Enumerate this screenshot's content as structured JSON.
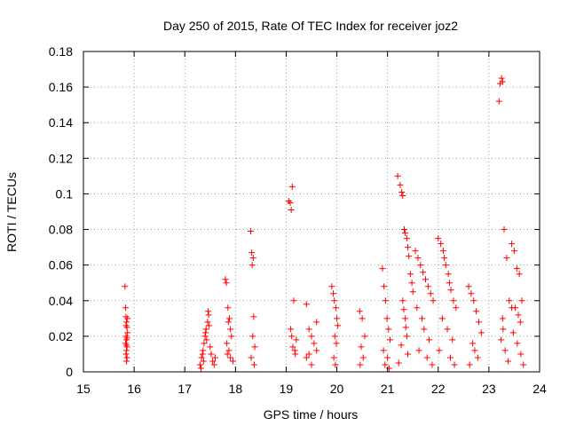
{
  "chart_data": {
    "type": "scatter",
    "title": "Day 250 of 2015, Rate Of TEC Index for receiver joz2",
    "xlabel": "GPS time / hours",
    "ylabel": "ROTI / TECUs",
    "xlim": [
      15,
      24
    ],
    "ylim": [
      0,
      0.18
    ],
    "x_ticks": [
      "15",
      "16",
      "17",
      "18",
      "19",
      "20",
      "21",
      "22",
      "23",
      "24"
    ],
    "y_ticks": [
      "0",
      "0.02",
      "0.04",
      "0.06",
      "0.08",
      "0.1",
      "0.12",
      "0.14",
      "0.16",
      "0.18"
    ],
    "grid": true,
    "marker": "plus",
    "colors": {
      "points": "#ff0000",
      "grid": "#a0a0a0",
      "axes": "#000000"
    },
    "series": [
      {
        "x": [
          15.82,
          15.83,
          15.84,
          15.85,
          15.86,
          15.87,
          15.84,
          15.85,
          15.83,
          15.86,
          15.85,
          15.84,
          15.86,
          15.85,
          15.84,
          15.87,
          15.85,
          15.86,
          17.3,
          17.33,
          17.36,
          17.38,
          17.4,
          17.42,
          17.45,
          17.47,
          17.35,
          17.37,
          17.43,
          17.48,
          17.5,
          17.52,
          17.55,
          17.6,
          17.58,
          17.32,
          17.41,
          17.46,
          17.8,
          17.82,
          17.85,
          17.88,
          17.9,
          17.92,
          17.83,
          17.87,
          17.9,
          17.95,
          17.84,
          17.86,
          18.3,
          18.32,
          18.35,
          18.33,
          18.36,
          18.34,
          18.38,
          18.31,
          18.37,
          19.05,
          19.08,
          19.1,
          19.12,
          19.15,
          19.2,
          19.13,
          19.17,
          19.18,
          19.11,
          19.09,
          19.4,
          19.45,
          19.5,
          19.55,
          19.6,
          19.4,
          19.5,
          19.6,
          19.45,
          19.9,
          19.93,
          19.95,
          19.98,
          20.0,
          20.02,
          19.96,
          19.99,
          19.94,
          19.97,
          20.45,
          20.5,
          20.55,
          20.48,
          20.52,
          20.46,
          20.9,
          20.93,
          20.96,
          20.99,
          21.02,
          21.05,
          20.92,
          21.0,
          20.95,
          21.03,
          21.2,
          21.25,
          21.28,
          21.3,
          21.33,
          21.35,
          21.38,
          21.4,
          21.42,
          21.45,
          21.48,
          21.5,
          21.3,
          21.32,
          21.35,
          21.36,
          21.38,
          21.27,
          21.4,
          21.22,
          21.55,
          21.6,
          21.65,
          21.7,
          21.75,
          21.8,
          21.85,
          21.9,
          21.58,
          21.68,
          21.72,
          21.82,
          21.62,
          21.78,
          21.88,
          22.0,
          22.05,
          22.1,
          22.12,
          22.15,
          22.2,
          22.22,
          22.25,
          22.3,
          22.35,
          22.08,
          22.18,
          22.28,
          22.02,
          22.24,
          22.32,
          22.6,
          22.65,
          22.7,
          22.75,
          22.8,
          22.85,
          22.68,
          22.72,
          22.78,
          22.62,
          23.2,
          23.22,
          23.25,
          23.27,
          23.3,
          23.35,
          23.4,
          23.45,
          23.27,
          23.28,
          23.24,
          23.32,
          23.38,
          23.45,
          23.5,
          23.55,
          23.6,
          23.65,
          23.52,
          23.58,
          23.62,
          23.48,
          23.56,
          23.63,
          23.68
        ],
        "y": [
          0.048,
          0.036,
          0.031,
          0.028,
          0.025,
          0.022,
          0.02,
          0.018,
          0.016,
          0.014,
          0.012,
          0.01,
          0.008,
          0.006,
          0.026,
          0.03,
          0.015,
          0.019,
          0.004,
          0.008,
          0.012,
          0.016,
          0.02,
          0.024,
          0.028,
          0.032,
          0.01,
          0.006,
          0.018,
          0.026,
          0.014,
          0.01,
          0.006,
          0.008,
          0.004,
          0.002,
          0.022,
          0.034,
          0.052,
          0.05,
          0.036,
          0.03,
          0.024,
          0.02,
          0.016,
          0.012,
          0.008,
          0.006,
          0.01,
          0.028,
          0.079,
          0.067,
          0.064,
          0.06,
          0.031,
          0.02,
          0.014,
          0.008,
          0.004,
          0.096,
          0.095,
          0.091,
          0.104,
          0.04,
          0.018,
          0.014,
          0.012,
          0.01,
          0.02,
          0.024,
          0.038,
          0.024,
          0.02,
          0.016,
          0.012,
          0.008,
          0.004,
          0.028,
          0.01,
          0.048,
          0.044,
          0.04,
          0.036,
          0.03,
          0.026,
          0.02,
          0.016,
          0.008,
          0.004,
          0.034,
          0.03,
          0.02,
          0.014,
          0.008,
          0.004,
          0.058,
          0.048,
          0.04,
          0.03,
          0.024,
          0.018,
          0.012,
          0.008,
          0.004,
          0.002,
          0.11,
          0.105,
          0.101,
          0.099,
          0.08,
          0.078,
          0.075,
          0.07,
          0.065,
          0.055,
          0.05,
          0.045,
          0.04,
          0.035,
          0.03,
          0.025,
          0.02,
          0.015,
          0.01,
          0.005,
          0.068,
          0.064,
          0.06,
          0.056,
          0.052,
          0.048,
          0.044,
          0.04,
          0.036,
          0.03,
          0.024,
          0.018,
          0.012,
          0.008,
          0.004,
          0.075,
          0.072,
          0.068,
          0.064,
          0.06,
          0.055,
          0.05,
          0.046,
          0.04,
          0.036,
          0.03,
          0.024,
          0.018,
          0.012,
          0.008,
          0.004,
          0.048,
          0.044,
          0.04,
          0.034,
          0.028,
          0.022,
          0.016,
          0.012,
          0.008,
          0.004,
          0.152,
          0.162,
          0.165,
          0.163,
          0.08,
          0.064,
          0.04,
          0.036,
          0.03,
          0.024,
          0.018,
          0.012,
          0.006,
          0.072,
          0.068,
          0.058,
          0.055,
          0.04,
          0.036,
          0.032,
          0.028,
          0.022,
          0.016,
          0.01,
          0.004
        ]
      }
    ]
  }
}
